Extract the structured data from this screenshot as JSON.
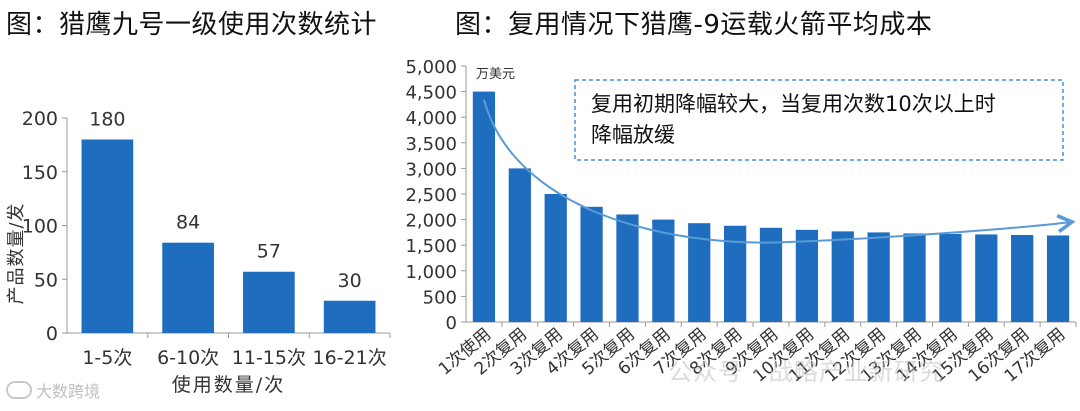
{
  "chart_data": [
    {
      "type": "bar",
      "title": "图：猎鹰九号一级使用次数统计",
      "categories": [
        "1-5次",
        "6-10次",
        "11-15次",
        "16-21次"
      ],
      "values": [
        180,
        84,
        57,
        30
      ],
      "xlabel": "使用数量/次",
      "ylabel": "产品数量/发",
      "ylim": [
        0,
        200
      ],
      "yticks": [
        0,
        50,
        100,
        150,
        200
      ],
      "color": "#1f6dbf",
      "data_labels": true
    },
    {
      "type": "bar",
      "title": "图：复用情况下猎鹰-9运载火箭平均成本",
      "unit": "万美元",
      "categories": [
        "1次使用",
        "2次复用",
        "3次复用",
        "4次复用",
        "5次复用",
        "6次复用",
        "7次复用",
        "8次复用",
        "9次复用",
        "10次复用",
        "11次复用",
        "12次复用",
        "13次复用",
        "14次复用",
        "15次复用",
        "16次复用",
        "17次复用"
      ],
      "values": [
        4500,
        3000,
        2500,
        2250,
        2100,
        2000,
        1930,
        1880,
        1840,
        1800,
        1770,
        1750,
        1730,
        1720,
        1710,
        1700,
        1690
      ],
      "ylim": [
        0,
        5000
      ],
      "yticks": [
        "0",
        "500",
        "1,000",
        "1,500",
        "2,000",
        "2,500",
        "3,000",
        "3,500",
        "4,000",
        "4,500",
        "5,000"
      ],
      "annotation": "复用初期降幅较大，当复用次数10次以上时降幅放缓",
      "color": "#1f6dbf",
      "trend_color": "#5b9bd5"
    }
  ],
  "watermark": {
    "left": "大数跨境",
    "right": "公众号 · 战略产业新研究"
  },
  "colors": {
    "bar": "#1f6dbf",
    "trend": "#5b9bd5",
    "axis": "#999999"
  }
}
